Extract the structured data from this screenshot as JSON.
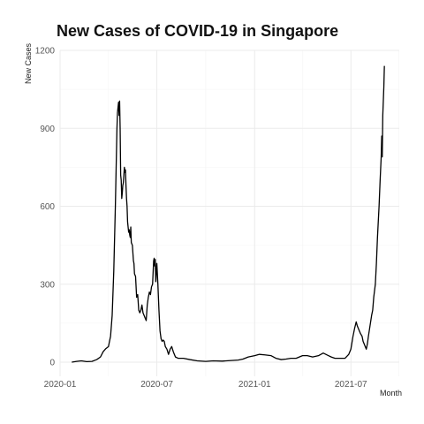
{
  "chart_data": {
    "type": "line",
    "title": "New Cases of COVID-19 in Singapore",
    "xlabel": "Month",
    "ylabel": "New Cases",
    "grid": true,
    "ylim": [
      0,
      1200
    ],
    "xlim": [
      "2020-01-01",
      "2021-09-30"
    ],
    "yticks": [
      "0",
      "300",
      "600",
      "900",
      "1200"
    ],
    "xticks": [
      {
        "date": "2020-01-01",
        "label": "2020-01"
      },
      {
        "date": "2020-07-01",
        "label": "2020-07"
      },
      {
        "date": "2021-01-01",
        "label": "2021-01"
      },
      {
        "date": "2021-07-01",
        "label": "2021-07"
      }
    ],
    "series": [
      {
        "color": "#000000",
        "points": [
          [
            "2020-01-23",
            0
          ],
          [
            "2020-02-01",
            3
          ],
          [
            "2020-02-10",
            5
          ],
          [
            "2020-02-20",
            2
          ],
          [
            "2020-03-01",
            3
          ],
          [
            "2020-03-10",
            10
          ],
          [
            "2020-03-17",
            20
          ],
          [
            "2020-03-22",
            40
          ],
          [
            "2020-03-27",
            52
          ],
          [
            "2020-04-01",
            60
          ],
          [
            "2020-04-05",
            100
          ],
          [
            "2020-04-08",
            180
          ],
          [
            "2020-04-11",
            350
          ],
          [
            "2020-04-14",
            600
          ],
          [
            "2020-04-16",
            800
          ],
          [
            "2020-04-17",
            900
          ],
          [
            "2020-04-18",
            960
          ],
          [
            "2020-04-20",
            1000
          ],
          [
            "2020-04-21",
            950
          ],
          [
            "2020-04-22",
            1005
          ],
          [
            "2020-04-23",
            900
          ],
          [
            "2020-04-24",
            720
          ],
          [
            "2020-04-25",
            700
          ],
          [
            "2020-04-26",
            630
          ],
          [
            "2020-04-27",
            650
          ],
          [
            "2020-04-28",
            680
          ],
          [
            "2020-04-29",
            690
          ],
          [
            "2020-04-30",
            720
          ],
          [
            "2020-05-01",
            750
          ],
          [
            "2020-05-02",
            730
          ],
          [
            "2020-05-03",
            740
          ],
          [
            "2020-05-04",
            680
          ],
          [
            "2020-05-05",
            630
          ],
          [
            "2020-05-06",
            600
          ],
          [
            "2020-05-07",
            540
          ],
          [
            "2020-05-08",
            520
          ],
          [
            "2020-05-09",
            500
          ],
          [
            "2020-05-10",
            510
          ],
          [
            "2020-05-11",
            490
          ],
          [
            "2020-05-12",
            480
          ],
          [
            "2020-05-13",
            520
          ],
          [
            "2020-05-14",
            460
          ],
          [
            "2020-05-16",
            450
          ],
          [
            "2020-05-18",
            390
          ],
          [
            "2020-05-19",
            380
          ],
          [
            "2020-05-20",
            340
          ],
          [
            "2020-05-22",
            330
          ],
          [
            "2020-05-24",
            250
          ],
          [
            "2020-05-26",
            260
          ],
          [
            "2020-05-28",
            200
          ],
          [
            "2020-05-30",
            190
          ],
          [
            "2020-06-01",
            200
          ],
          [
            "2020-06-03",
            220
          ],
          [
            "2020-06-05",
            190
          ],
          [
            "2020-06-07",
            180
          ],
          [
            "2020-06-09",
            170
          ],
          [
            "2020-06-11",
            160
          ],
          [
            "2020-06-13",
            220
          ],
          [
            "2020-06-15",
            250
          ],
          [
            "2020-06-17",
            270
          ],
          [
            "2020-06-19",
            260
          ],
          [
            "2020-06-21",
            290
          ],
          [
            "2020-06-23",
            300
          ],
          [
            "2020-06-25",
            390
          ],
          [
            "2020-06-26",
            400
          ],
          [
            "2020-06-27",
            370
          ],
          [
            "2020-06-28",
            395
          ],
          [
            "2020-06-29",
            310
          ],
          [
            "2020-07-01",
            380
          ],
          [
            "2020-07-03",
            300
          ],
          [
            "2020-07-05",
            200
          ],
          [
            "2020-07-07",
            120
          ],
          [
            "2020-07-09",
            90
          ],
          [
            "2020-07-11",
            80
          ],
          [
            "2020-07-13",
            85
          ],
          [
            "2020-07-15",
            80
          ],
          [
            "2020-07-17",
            60
          ],
          [
            "2020-07-20",
            50
          ],
          [
            "2020-07-23",
            30
          ],
          [
            "2020-07-26",
            50
          ],
          [
            "2020-07-29",
            60
          ],
          [
            "2020-08-01",
            40
          ],
          [
            "2020-08-05",
            20
          ],
          [
            "2020-08-10",
            15
          ],
          [
            "2020-08-20",
            15
          ],
          [
            "2020-09-01",
            10
          ],
          [
            "2020-09-15",
            5
          ],
          [
            "2020-10-01",
            3
          ],
          [
            "2020-10-15",
            5
          ],
          [
            "2020-11-01",
            4
          ],
          [
            "2020-11-15",
            6
          ],
          [
            "2020-12-01",
            8
          ],
          [
            "2020-12-10",
            12
          ],
          [
            "2020-12-20",
            20
          ],
          [
            "2021-01-01",
            25
          ],
          [
            "2021-01-10",
            30
          ],
          [
            "2021-01-20",
            28
          ],
          [
            "2021-02-01",
            25
          ],
          [
            "2021-02-10",
            15
          ],
          [
            "2021-02-20",
            10
          ],
          [
            "2021-03-01",
            12
          ],
          [
            "2021-03-10",
            15
          ],
          [
            "2021-03-20",
            15
          ],
          [
            "2021-04-01",
            25
          ],
          [
            "2021-04-10",
            25
          ],
          [
            "2021-04-20",
            20
          ],
          [
            "2021-05-01",
            25
          ],
          [
            "2021-05-10",
            35
          ],
          [
            "2021-05-20",
            25
          ],
          [
            "2021-05-25",
            20
          ],
          [
            "2021-06-01",
            15
          ],
          [
            "2021-06-10",
            15
          ],
          [
            "2021-06-20",
            15
          ],
          [
            "2021-06-27",
            30
          ],
          [
            "2021-07-01",
            50
          ],
          [
            "2021-07-05",
            100
          ],
          [
            "2021-07-08",
            130
          ],
          [
            "2021-07-11",
            155
          ],
          [
            "2021-07-13",
            140
          ],
          [
            "2021-07-16",
            125
          ],
          [
            "2021-07-19",
            110
          ],
          [
            "2021-07-22",
            100
          ],
          [
            "2021-07-24",
            80
          ],
          [
            "2021-07-26",
            70
          ],
          [
            "2021-07-28",
            60
          ],
          [
            "2021-07-30",
            50
          ],
          [
            "2021-08-01",
            70
          ],
          [
            "2021-08-03",
            100
          ],
          [
            "2021-08-06",
            140
          ],
          [
            "2021-08-09",
            180
          ],
          [
            "2021-08-11",
            200
          ],
          [
            "2021-08-13",
            250
          ],
          [
            "2021-08-16",
            300
          ],
          [
            "2021-08-18",
            380
          ],
          [
            "2021-08-20",
            480
          ],
          [
            "2021-08-23",
            600
          ],
          [
            "2021-08-25",
            700
          ],
          [
            "2021-08-27",
            790
          ],
          [
            "2021-08-28",
            870
          ],
          [
            "2021-08-29",
            790
          ],
          [
            "2021-08-30",
            950
          ],
          [
            "2021-09-01",
            1060
          ],
          [
            "2021-09-02",
            1140
          ]
        ]
      }
    ]
  }
}
